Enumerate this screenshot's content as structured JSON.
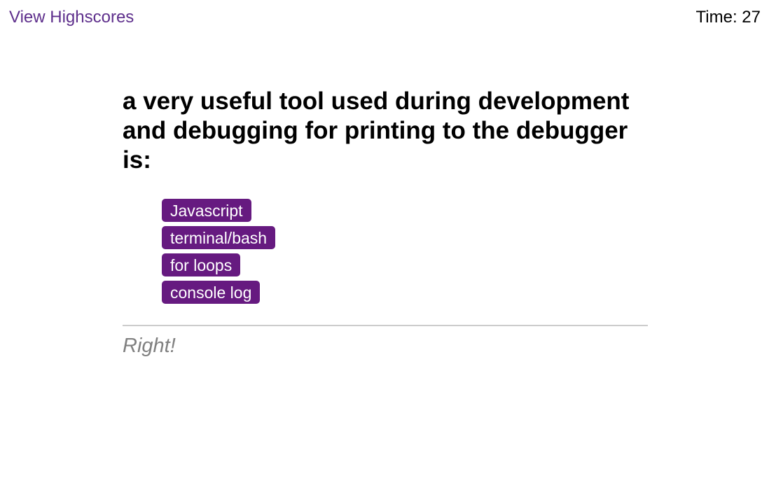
{
  "header": {
    "highscores_link": "View Highscores",
    "time_label": "Time:",
    "time_value": "27"
  },
  "quiz": {
    "question": "a very useful tool used during development and debugging for printing to the debugger is:",
    "choices": [
      {
        "label": "Javascript"
      },
      {
        "label": "terminal/bash"
      },
      {
        "label": "for loops"
      },
      {
        "label": "console log"
      }
    ],
    "feedback": "Right!"
  },
  "colors": {
    "accent": "#661a80",
    "link": "#5e2f8c",
    "feedback": "#808080",
    "divider": "#cccccc"
  }
}
